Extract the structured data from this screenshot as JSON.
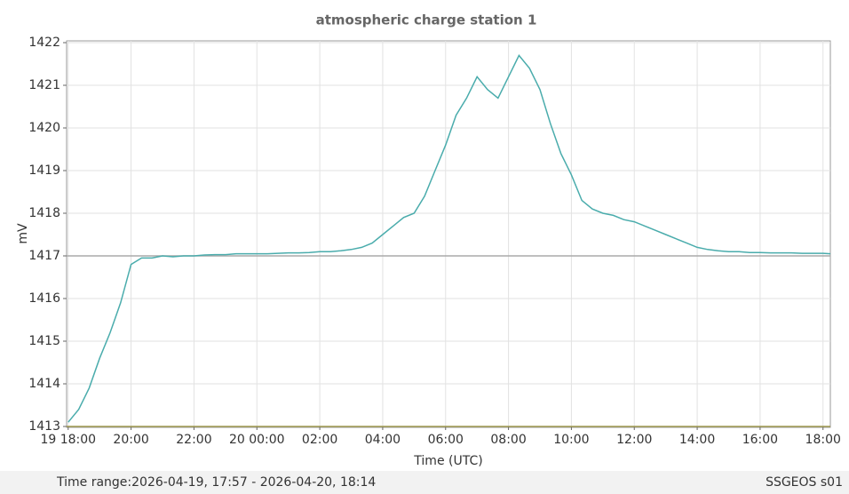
{
  "chart_data": {
    "type": "line",
    "title": "atmospheric charge station 1",
    "xlabel": "Time (UTC)",
    "ylabel": "mV",
    "footer_left": "Time range:2026-04-19, 17:57 - 2026-04-20, 18:14",
    "footer_right": "SSGEOS s01",
    "xlim": [
      "2026-04-19T17:57",
      "2026-04-20T18:14"
    ],
    "xticks": [
      {
        "value": "2026-04-19T18:00",
        "label": "19 18:00"
      },
      {
        "value": "2026-04-19T20:00",
        "label": "20:00"
      },
      {
        "value": "2026-04-19T22:00",
        "label": "22:00"
      },
      {
        "value": "2026-04-20T00:00",
        "label": "20 00:00"
      },
      {
        "value": "2026-04-20T02:00",
        "label": "02:00"
      },
      {
        "value": "2026-04-20T04:00",
        "label": "04:00"
      },
      {
        "value": "2026-04-20T06:00",
        "label": "06:00"
      },
      {
        "value": "2026-04-20T08:00",
        "label": "08:00"
      },
      {
        "value": "2026-04-20T10:00",
        "label": "10:00"
      },
      {
        "value": "2026-04-20T12:00",
        "label": "12:00"
      },
      {
        "value": "2026-04-20T14:00",
        "label": "14:00"
      },
      {
        "value": "2026-04-20T16:00",
        "label": "16:00"
      },
      {
        "value": "2026-04-20T18:00",
        "label": "18:00"
      }
    ],
    "ylim": [
      1413,
      1422
    ],
    "yticks": [
      1413,
      1414,
      1415,
      1416,
      1417,
      1418,
      1419,
      1420,
      1421,
      1422
    ],
    "grid": true,
    "hlines": [
      {
        "value": 1417,
        "color": "#aaaaaa"
      },
      {
        "value": 1413,
        "color": "#a09a50"
      }
    ],
    "x": [
      "2026-04-19T18:00",
      "2026-04-19T18:20",
      "2026-04-19T18:40",
      "2026-04-19T19:00",
      "2026-04-19T19:20",
      "2026-04-19T19:40",
      "2026-04-19T20:00",
      "2026-04-19T20:20",
      "2026-04-19T20:40",
      "2026-04-19T21:00",
      "2026-04-19T21:20",
      "2026-04-19T21:40",
      "2026-04-19T22:00",
      "2026-04-19T22:20",
      "2026-04-19T22:40",
      "2026-04-19T23:00",
      "2026-04-19T23:20",
      "2026-04-19T23:40",
      "2026-04-20T00:00",
      "2026-04-20T00:20",
      "2026-04-20T00:40",
      "2026-04-20T01:00",
      "2026-04-20T01:20",
      "2026-04-20T01:40",
      "2026-04-20T02:00",
      "2026-04-20T02:20",
      "2026-04-20T02:40",
      "2026-04-20T03:00",
      "2026-04-20T03:20",
      "2026-04-20T03:40",
      "2026-04-20T04:00",
      "2026-04-20T04:20",
      "2026-04-20T04:40",
      "2026-04-20T05:00",
      "2026-04-20T05:20",
      "2026-04-20T05:40",
      "2026-04-20T06:00",
      "2026-04-20T06:20",
      "2026-04-20T06:40",
      "2026-04-20T07:00",
      "2026-04-20T07:20",
      "2026-04-20T07:40",
      "2026-04-20T08:00",
      "2026-04-20T08:20",
      "2026-04-20T08:40",
      "2026-04-20T09:00",
      "2026-04-20T09:20",
      "2026-04-20T09:40",
      "2026-04-20T10:00",
      "2026-04-20T10:20",
      "2026-04-20T10:40",
      "2026-04-20T11:00",
      "2026-04-20T11:20",
      "2026-04-20T11:40",
      "2026-04-20T12:00",
      "2026-04-20T12:20",
      "2026-04-20T12:40",
      "2026-04-20T13:00",
      "2026-04-20T13:20",
      "2026-04-20T13:40",
      "2026-04-20T14:00",
      "2026-04-20T14:20",
      "2026-04-20T14:40",
      "2026-04-20T15:00",
      "2026-04-20T15:20",
      "2026-04-20T15:40",
      "2026-04-20T16:00",
      "2026-04-20T16:20",
      "2026-04-20T16:40",
      "2026-04-20T17:00",
      "2026-04-20T17:20",
      "2026-04-20T17:40",
      "2026-04-20T18:00",
      "2026-04-20T18:14"
    ],
    "series": [
      {
        "color": "#4aacac",
        "values": [
          1413.1,
          1413.4,
          1413.9,
          1414.6,
          1415.2,
          1415.9,
          1416.8,
          1416.95,
          1416.95,
          1417.0,
          1416.98,
          1417.0,
          1417.0,
          1417.02,
          1417.03,
          1417.03,
          1417.05,
          1417.05,
          1417.05,
          1417.05,
          1417.06,
          1417.07,
          1417.07,
          1417.08,
          1417.1,
          1417.1,
          1417.12,
          1417.15,
          1417.2,
          1417.3,
          1417.5,
          1417.7,
          1417.9,
          1418.0,
          1418.4,
          1419.0,
          1419.6,
          1420.3,
          1420.7,
          1421.2,
          1420.9,
          1420.7,
          1421.2,
          1421.7,
          1421.4,
          1420.9,
          1420.1,
          1419.4,
          1418.9,
          1418.3,
          1418.1,
          1418.0,
          1417.95,
          1417.85,
          1417.8,
          1417.7,
          1417.6,
          1417.5,
          1417.4,
          1417.3,
          1417.2,
          1417.15,
          1417.12,
          1417.1,
          1417.1,
          1417.08,
          1417.08,
          1417.07,
          1417.07,
          1417.07,
          1417.06,
          1417.06,
          1417.06,
          1417.05
        ]
      }
    ]
  }
}
